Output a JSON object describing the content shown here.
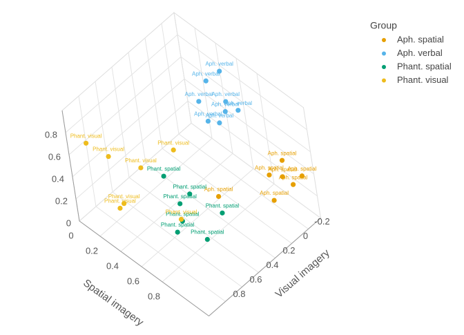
{
  "chart_data": {
    "type": "scatter3d",
    "x_label": "Visual imagery",
    "y_label": "Spatial imagery",
    "legend_title": "Group",
    "legend_position": "top-right",
    "grid": true,
    "xlim": [
      -0.35,
      1.0
    ],
    "ylim": [
      0,
      1.25
    ],
    "zlim": [
      0,
      1.0
    ],
    "xticks": [
      -0.2,
      0,
      0.2,
      0.4,
      0.6,
      0.8
    ],
    "yticks": [
      0,
      0.2,
      0.4,
      0.6,
      0.8
    ],
    "zticks": [
      0,
      0.2,
      0.4,
      0.6,
      0.8
    ],
    "series": [
      {
        "name": "Aph. spatial",
        "color": "#e69f00",
        "x": [
          -0.24,
          -0.06,
          -0.12,
          -0.27,
          -0.23,
          0.27,
          -0.08
        ],
        "y": [
          1.04,
          1.06,
          1.14,
          1.2,
          1.13,
          0.81,
          1.05
        ],
        "z": [
          0.45,
          0.45,
          0.45,
          0.4,
          0.3,
          0.3,
          0.2
        ]
      },
      {
        "name": "Aph. verbal",
        "color": "#56b4e9",
        "x": [
          -0.16,
          -0.05,
          0.07,
          -0.04,
          -0.08,
          0.0,
          0.13,
          0.08
        ],
        "y": [
          0.59,
          0.54,
          0.55,
          0.73,
          0.81,
          0.75,
          0.68,
          0.75
        ],
        "z": [
          1.0,
          0.95,
          0.85,
          0.9,
          0.85,
          0.85,
          0.8,
          0.8
        ]
      },
      {
        "name": "Phant. spatial",
        "color": "#009e73",
        "x": [
          0.42,
          0.3,
          0.39,
          0.19,
          0.47,
          0.58,
          0.47
        ],
        "y": [
          0.4,
          0.53,
          0.5,
          0.74,
          0.58,
          0.62,
          0.82
        ],
        "z": [
          0.3,
          0.15,
          0.1,
          0.05,
          0.05,
          0.05,
          0.05
        ]
      },
      {
        "name": "Phant. visual",
        "color": "#eebc1d",
        "x": [
          0.82,
          0.76,
          0.63,
          0.39,
          0.77,
          0.79,
          0.5
        ],
        "y": [
          0.02,
          0.18,
          0.38,
          0.52,
          0.28,
          0.25,
          0.6
        ],
        "z": [
          0.6,
          0.55,
          0.5,
          0.6,
          0.2,
          0.15,
          0.1
        ]
      }
    ]
  }
}
